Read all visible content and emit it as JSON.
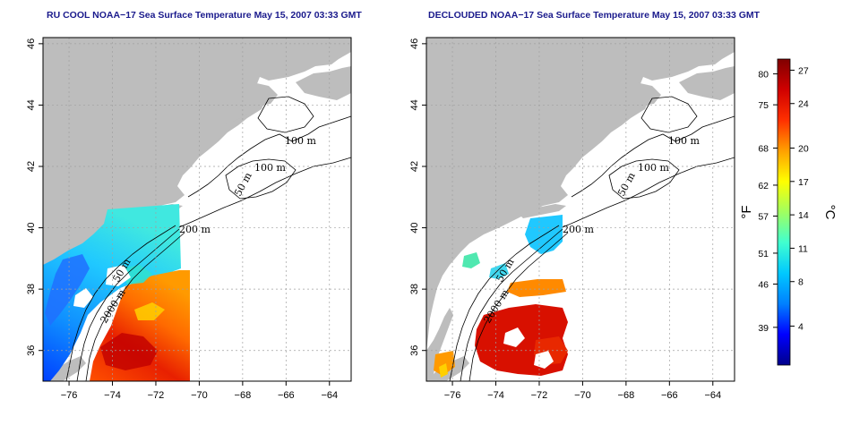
{
  "panels": [
    {
      "id": "left",
      "title": "RU COOL NOAA−17 Sea Surface Temperature May 15, 2007 03:33 GMT",
      "contour_labels": [
        "100 m",
        "100 m",
        "50 m",
        "200 m",
        "50 m",
        "2000 m"
      ],
      "data_coverage": "swath-west"
    },
    {
      "id": "right",
      "title": "DECLOUDED NOAA−17 Sea Surface Temperature May 15, 2007 03:33 GMT",
      "contour_labels": [
        "100 m",
        "100 m",
        "50 m",
        "200 m",
        "50 m",
        "2000 m"
      ],
      "data_coverage": "declouded-patches"
    }
  ],
  "axes": {
    "x_ticks": [
      "−76",
      "−74",
      "−72",
      "−70",
      "−68",
      "−66",
      "−64"
    ],
    "y_ticks": [
      "46",
      "44",
      "42",
      "40",
      "38",
      "36"
    ],
    "lon_range": [
      -77.2,
      -63
    ],
    "lat_range": [
      35,
      46.2
    ]
  },
  "colorbar": {
    "fahrenheit_label": "°F",
    "celsius_label": "°C",
    "fahrenheit_ticks": [
      "80",
      "75",
      "68",
      "62",
      "57",
      "51",
      "46",
      "39"
    ],
    "celsius_ticks": [
      "27",
      "24",
      "20",
      "17",
      "14",
      "11",
      "8",
      "4"
    ],
    "colors": [
      "#00008b",
      "#0000ff",
      "#0080ff",
      "#00c8ff",
      "#40ffd0",
      "#a0ff60",
      "#ffff00",
      "#ffa000",
      "#ff3000",
      "#d00000",
      "#800000"
    ]
  },
  "colors": {
    "land": "#bdbdbd",
    "water_no_data": "#ffffff",
    "grid": "#a0a0a0",
    "title": "#1a1a8c"
  }
}
